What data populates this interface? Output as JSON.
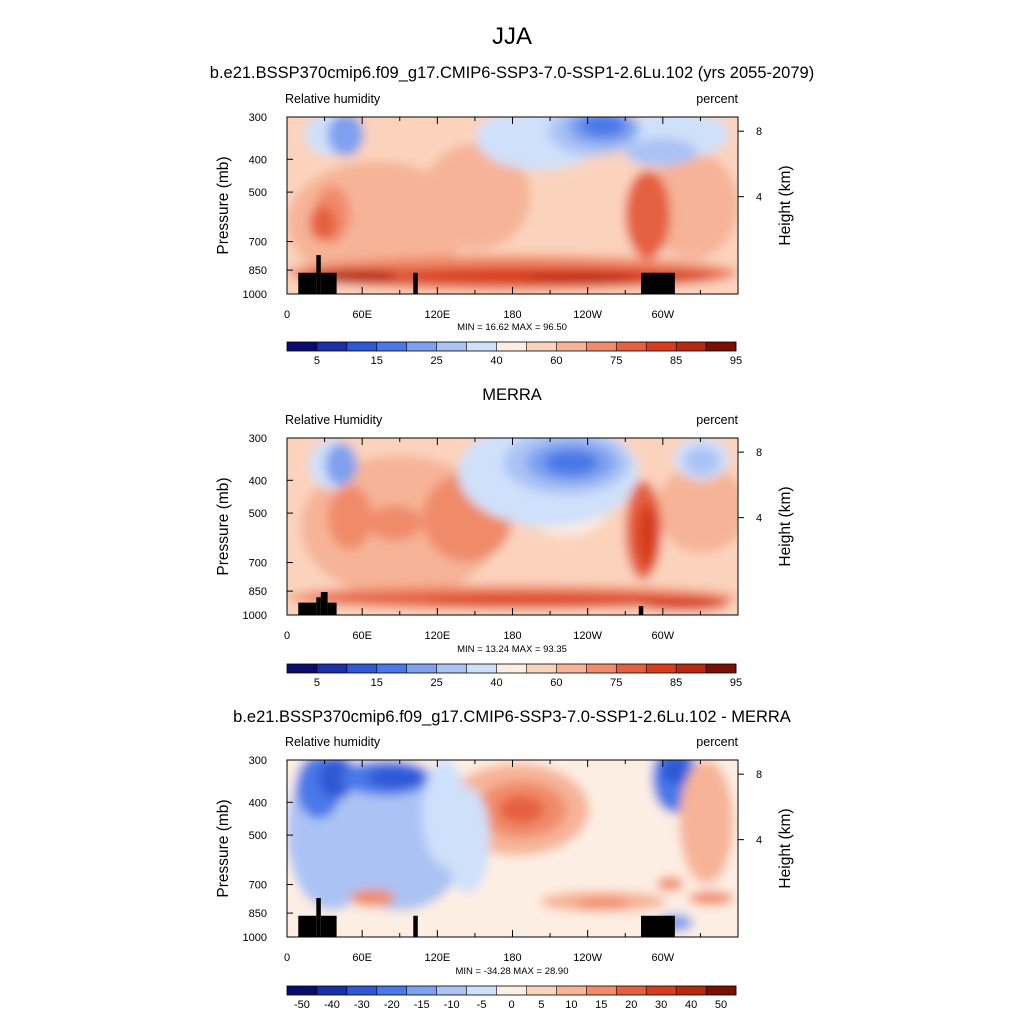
{
  "page_title": "JJA",
  "colors": {
    "abs_palette": [
      "#0b0b6e",
      "#1a2fa8",
      "#2e58d6",
      "#4a78e8",
      "#7ea0ef",
      "#aac2f4",
      "#cfe0fa",
      "#fdeee3",
      "#fbd3bd",
      "#f6b397",
      "#f08b6b",
      "#e5603f",
      "#d73c1f",
      "#b72a10",
      "#7a0f03"
    ],
    "diff_palette": [
      "#0b0b6e",
      "#1a2fa8",
      "#2e58d6",
      "#4a78e8",
      "#7ea0ef",
      "#aac2f4",
      "#cfe0fa",
      "#fdeee3",
      "#fbd3bd",
      "#f6b397",
      "#f08b6b",
      "#e5603f",
      "#d73c1f",
      "#b72a10",
      "#7a0f03"
    ],
    "topography": "#000000"
  },
  "chart_data": [
    {
      "type": "heatmap",
      "title": "b.e21.BSSP370cmip6.f09_g17.CMIP6-SSP3-7.0-SSP1-2.6Lu.102 (yrs 2055-2079)",
      "left_label": "Relative humidity",
      "right_label": "percent",
      "ylabel": "Pressure (mb)",
      "y2label": "Height (km)",
      "x_ticks": [
        "0",
        "60E",
        "120E",
        "180",
        "120W",
        "60W"
      ],
      "y_ticks": [
        "300",
        "400",
        "500",
        "700",
        "850",
        "1000"
      ],
      "y2_ticks": [
        "8",
        "4"
      ],
      "stats": "MIN =  16.62  MAX =  96.50",
      "colorbar_labels": [
        "5",
        "15",
        "25",
        "40",
        "60",
        "75",
        "85",
        "95"
      ],
      "min": 16.62,
      "max": 96.5
    },
    {
      "type": "heatmap",
      "title": "MERRA",
      "left_label": "Relative Humidity",
      "right_label": "percent",
      "ylabel": "Pressure (mb)",
      "y2label": "Height (km)",
      "x_ticks": [
        "0",
        "60E",
        "120E",
        "180",
        "120W",
        "60W"
      ],
      "y_ticks": [
        "300",
        "400",
        "500",
        "700",
        "850",
        "1000"
      ],
      "y2_ticks": [
        "8",
        "4"
      ],
      "stats": "MIN =  13.24  MAX =  93.35",
      "colorbar_labels": [
        "5",
        "15",
        "25",
        "40",
        "60",
        "75",
        "85",
        "95"
      ],
      "min": 13.24,
      "max": 93.35
    },
    {
      "type": "heatmap",
      "title": "b.e21.BSSP370cmip6.f09_g17.CMIP6-SSP3-7.0-SSP1-2.6Lu.102 - MERRA",
      "left_label": "Relative humidity",
      "right_label": "percent",
      "ylabel": "Pressure (mb)",
      "y2label": "Height (km)",
      "x_ticks": [
        "0",
        "60E",
        "120E",
        "180",
        "120W",
        "60W"
      ],
      "y_ticks": [
        "300",
        "400",
        "500",
        "700",
        "850",
        "1000"
      ],
      "y2_ticks": [
        "8",
        "4"
      ],
      "stats": "MIN = -34.28  MAX =  28.90",
      "colorbar_labels": [
        "-50",
        "-40",
        "-30",
        "-20",
        "-15",
        "-10",
        "-5",
        "0",
        "5",
        "10",
        "15",
        "20",
        "30",
        "40",
        "50"
      ],
      "min": -34.28,
      "max": 28.9
    }
  ]
}
